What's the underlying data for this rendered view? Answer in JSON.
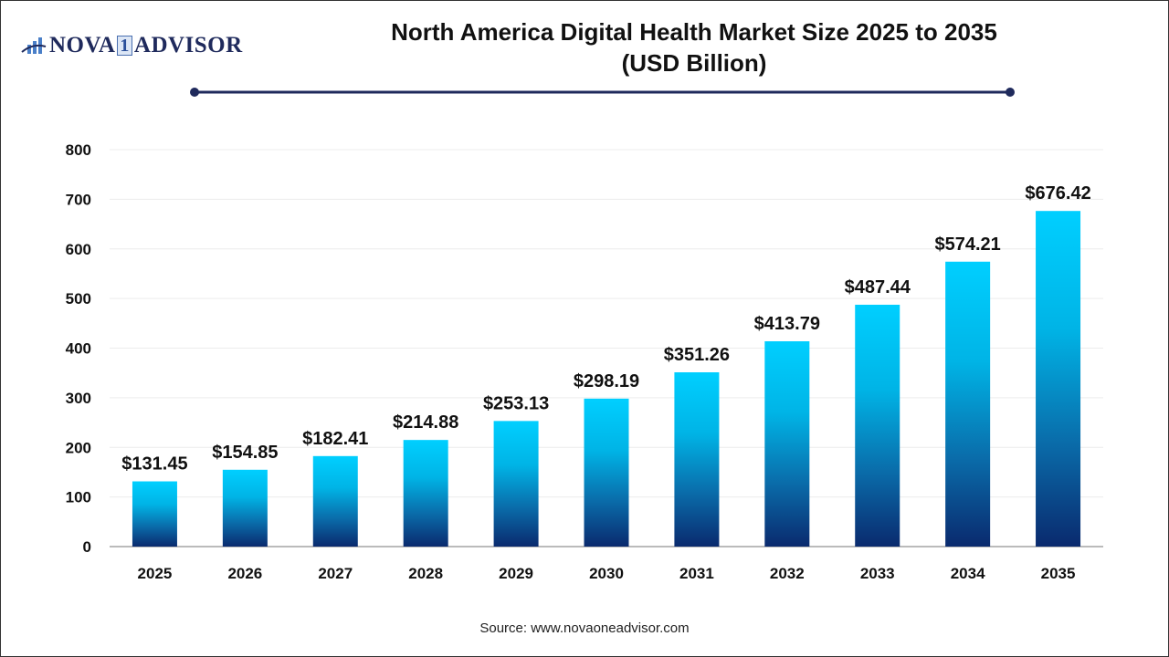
{
  "brand": {
    "logo_text_left": "NOVA",
    "logo_number": "1",
    "logo_text_right": "ADVISOR"
  },
  "chart_data": {
    "type": "bar",
    "title_line1": "North America Digital Health Market Size 2025 to 2035",
    "title_line2": "(USD Billion)",
    "categories": [
      "2025",
      "2026",
      "2027",
      "2028",
      "2029",
      "2030",
      "2031",
      "2032",
      "2033",
      "2034",
      "2035"
    ],
    "values": [
      131.45,
      154.85,
      182.41,
      214.88,
      253.13,
      298.19,
      351.26,
      413.79,
      487.44,
      574.21,
      676.42
    ],
    "data_labels": [
      "$131.45",
      "$154.85",
      "$182.41",
      "$214.88",
      "$253.13",
      "$298.19",
      "$351.26",
      "$413.79",
      "$487.44",
      "$574.21",
      "$676.42"
    ],
    "xlabel": "",
    "ylabel": "",
    "ylim": [
      0,
      800
    ],
    "yticks": [
      "0",
      "100",
      "200",
      "300",
      "400",
      "500",
      "600",
      "700",
      "800"
    ],
    "grid": true,
    "colors": {
      "bar_top": "#00cfff",
      "bar_bottom": "#0a2a6e",
      "title_rule": "#1f2a5c"
    }
  },
  "source": "Source: www.novaoneadvisor.com"
}
